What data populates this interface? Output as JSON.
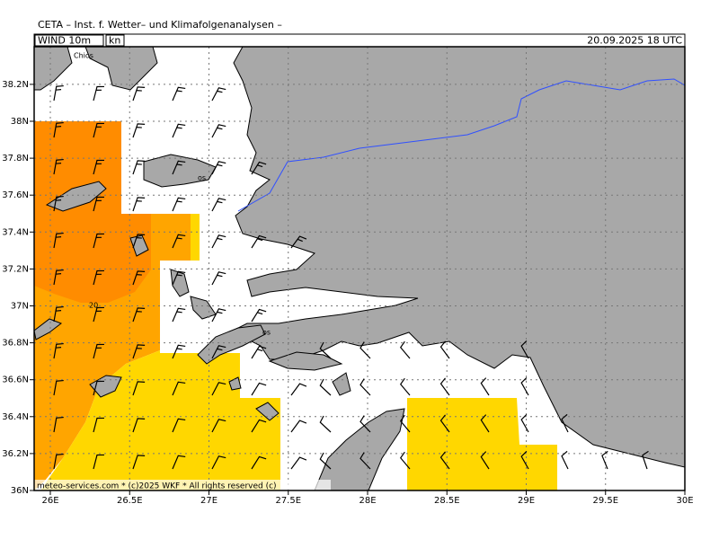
{
  "header": {
    "title": "CETA – Inst. f. Wetter– und Klimafolgenanalysen –",
    "parameter": "WIND 10m",
    "unit": "kn",
    "valid_time": "20.09.2025 18 UTC"
  },
  "map": {
    "lat_ticks": [
      {
        "value": 36,
        "label": "36N"
      },
      {
        "value": 36.2,
        "label": "36.2N"
      },
      {
        "value": 36.4,
        "label": "36.4N"
      },
      {
        "value": 36.6,
        "label": "36.6N"
      },
      {
        "value": 36.8,
        "label": "36.8N"
      },
      {
        "value": 37,
        "label": "37N"
      },
      {
        "value": 37.2,
        "label": "37.2N"
      },
      {
        "value": 37.4,
        "label": "37.4N"
      },
      {
        "value": 37.6,
        "label": "37.6N"
      },
      {
        "value": 37.8,
        "label": "37.8N"
      },
      {
        "value": 38,
        "label": "38N"
      },
      {
        "value": 38.2,
        "label": "38.2N"
      }
    ],
    "lon_ticks": [
      {
        "value": 26,
        "label": "26E"
      },
      {
        "value": 26.5,
        "label": "26.5E"
      },
      {
        "value": 27,
        "label": "27E"
      },
      {
        "value": 27.5,
        "label": "27.5E"
      },
      {
        "value": 28,
        "label": "28E"
      },
      {
        "value": 28.5,
        "label": "28.5E"
      },
      {
        "value": 29,
        "label": "29E"
      },
      {
        "value": 29.5,
        "label": "29.5E"
      },
      {
        "value": 30,
        "label": "30E"
      }
    ],
    "place_labels": [
      "Chios",
      "os",
      "os"
    ],
    "contour_label": "20"
  },
  "footer": "meteo-services.com * (c)2025 WKF * All rights reserved (c)"
}
